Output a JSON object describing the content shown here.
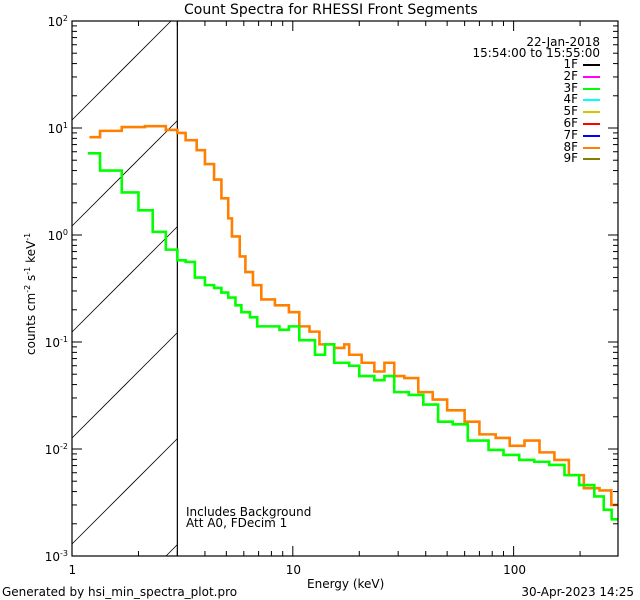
{
  "chart_data": {
    "type": "line",
    "title": "Count Spectra for RHESSI Front Segments",
    "xlabel": "Energy (keV)",
    "ylabel": "counts cm-2 s-1 keV-1",
    "xscale": "log",
    "yscale": "log",
    "xlim": [
      1,
      297
    ],
    "ylim": [
      0.001,
      100
    ],
    "x_ticks": [
      {
        "value": 1,
        "label": "1"
      },
      {
        "value": 10,
        "label": "10"
      },
      {
        "value": 100,
        "label": "100"
      }
    ],
    "y_ticks": [
      {
        "value": 0.001,
        "base": "10",
        "exp": "-3"
      },
      {
        "value": 0.01,
        "base": "10",
        "exp": "-2"
      },
      {
        "value": 0.1,
        "base": "10",
        "exp": "-1"
      },
      {
        "value": 1,
        "base": "10",
        "exp": "0"
      },
      {
        "value": 10,
        "base": "10",
        "exp": "1"
      },
      {
        "value": 100,
        "base": "10",
        "exp": "2"
      }
    ],
    "hatched_region_kev": [
      1,
      3
    ],
    "date": "22-Jan-2018",
    "time_range": "15:54:00 to 15:55:00",
    "legend": [
      {
        "label": "1F",
        "color": "#000000"
      },
      {
        "label": "2F",
        "color": "#ff00ff"
      },
      {
        "label": "3F",
        "color": "#00ff00"
      },
      {
        "label": "4F",
        "color": "#00ffff"
      },
      {
        "label": "5F",
        "color": "#d4c800"
      },
      {
        "label": "6F",
        "color": "#ff0000"
      },
      {
        "label": "7F",
        "color": "#0000ff"
      },
      {
        "label": "8F",
        "color": "#ff8000"
      },
      {
        "label": "9F",
        "color": "#808000"
      }
    ],
    "legend_placement": "top-right",
    "annotations": [
      "Includes Background",
      "Att A0, FDecim 1"
    ],
    "series": [
      {
        "name": "8F",
        "color": "#ff8000",
        "x": [
          1.2,
          1.34,
          1.68,
          2.14,
          2.66,
          3.0,
          3.27,
          3.67,
          4.0,
          4.4,
          4.75,
          5.1,
          5.3,
          5.75,
          6.1,
          6.6,
          7.2,
          8.3,
          9.6,
          10.7,
          11.9,
          13.2,
          15.4,
          17.1,
          18,
          20.5,
          23.4,
          26,
          28.8,
          32,
          37,
          43,
          50,
          60,
          70,
          83,
          96,
          112,
          131,
          153,
          178,
          208,
          245,
          277,
          297
        ],
        "y": [
          8.2,
          9.4,
          10.2,
          10.4,
          9.6,
          9.0,
          7.7,
          6.2,
          4.6,
          3.3,
          2.2,
          1.43,
          0.97,
          0.63,
          0.45,
          0.34,
          0.25,
          0.22,
          0.19,
          0.14,
          0.125,
          0.095,
          0.088,
          0.095,
          0.076,
          0.064,
          0.053,
          0.064,
          0.048,
          0.046,
          0.034,
          0.029,
          0.023,
          0.018,
          0.0137,
          0.0127,
          0.0107,
          0.012,
          0.0093,
          0.0079,
          0.0057,
          0.0043,
          0.0041,
          0.003,
          0.003
        ]
      },
      {
        "name": "3F",
        "color": "#00ff00",
        "x": [
          1.18,
          1.34,
          1.68,
          2.0,
          2.32,
          2.66,
          3.0,
          3.27,
          3.6,
          4.0,
          4.4,
          4.75,
          5.1,
          5.5,
          5.85,
          6.4,
          6.9,
          7.9,
          8.7,
          9.6,
          10.7,
          12.6,
          14,
          15.4,
          18,
          20,
          23.4,
          26,
          28.8,
          33.5,
          39,
          45.5,
          53,
          62,
          77,
          90,
          106,
          124,
          145,
          170,
          198,
          232,
          256,
          278,
          297
        ],
        "y": [
          5.8,
          4.0,
          2.5,
          1.7,
          1.07,
          0.73,
          0.58,
          0.56,
          0.4,
          0.34,
          0.32,
          0.29,
          0.26,
          0.22,
          0.19,
          0.17,
          0.14,
          0.14,
          0.13,
          0.14,
          0.104,
          0.076,
          0.095,
          0.064,
          0.06,
          0.048,
          0.044,
          0.048,
          0.034,
          0.032,
          0.026,
          0.018,
          0.017,
          0.012,
          0.0098,
          0.0088,
          0.0079,
          0.0076,
          0.0071,
          0.0057,
          0.0046,
          0.0036,
          0.0027,
          0.0022,
          0.0022
        ]
      }
    ]
  },
  "footer": {
    "left": "Generated by hsi_min_spectra_plot.pro",
    "right": "30-Apr-2023 14:25"
  }
}
